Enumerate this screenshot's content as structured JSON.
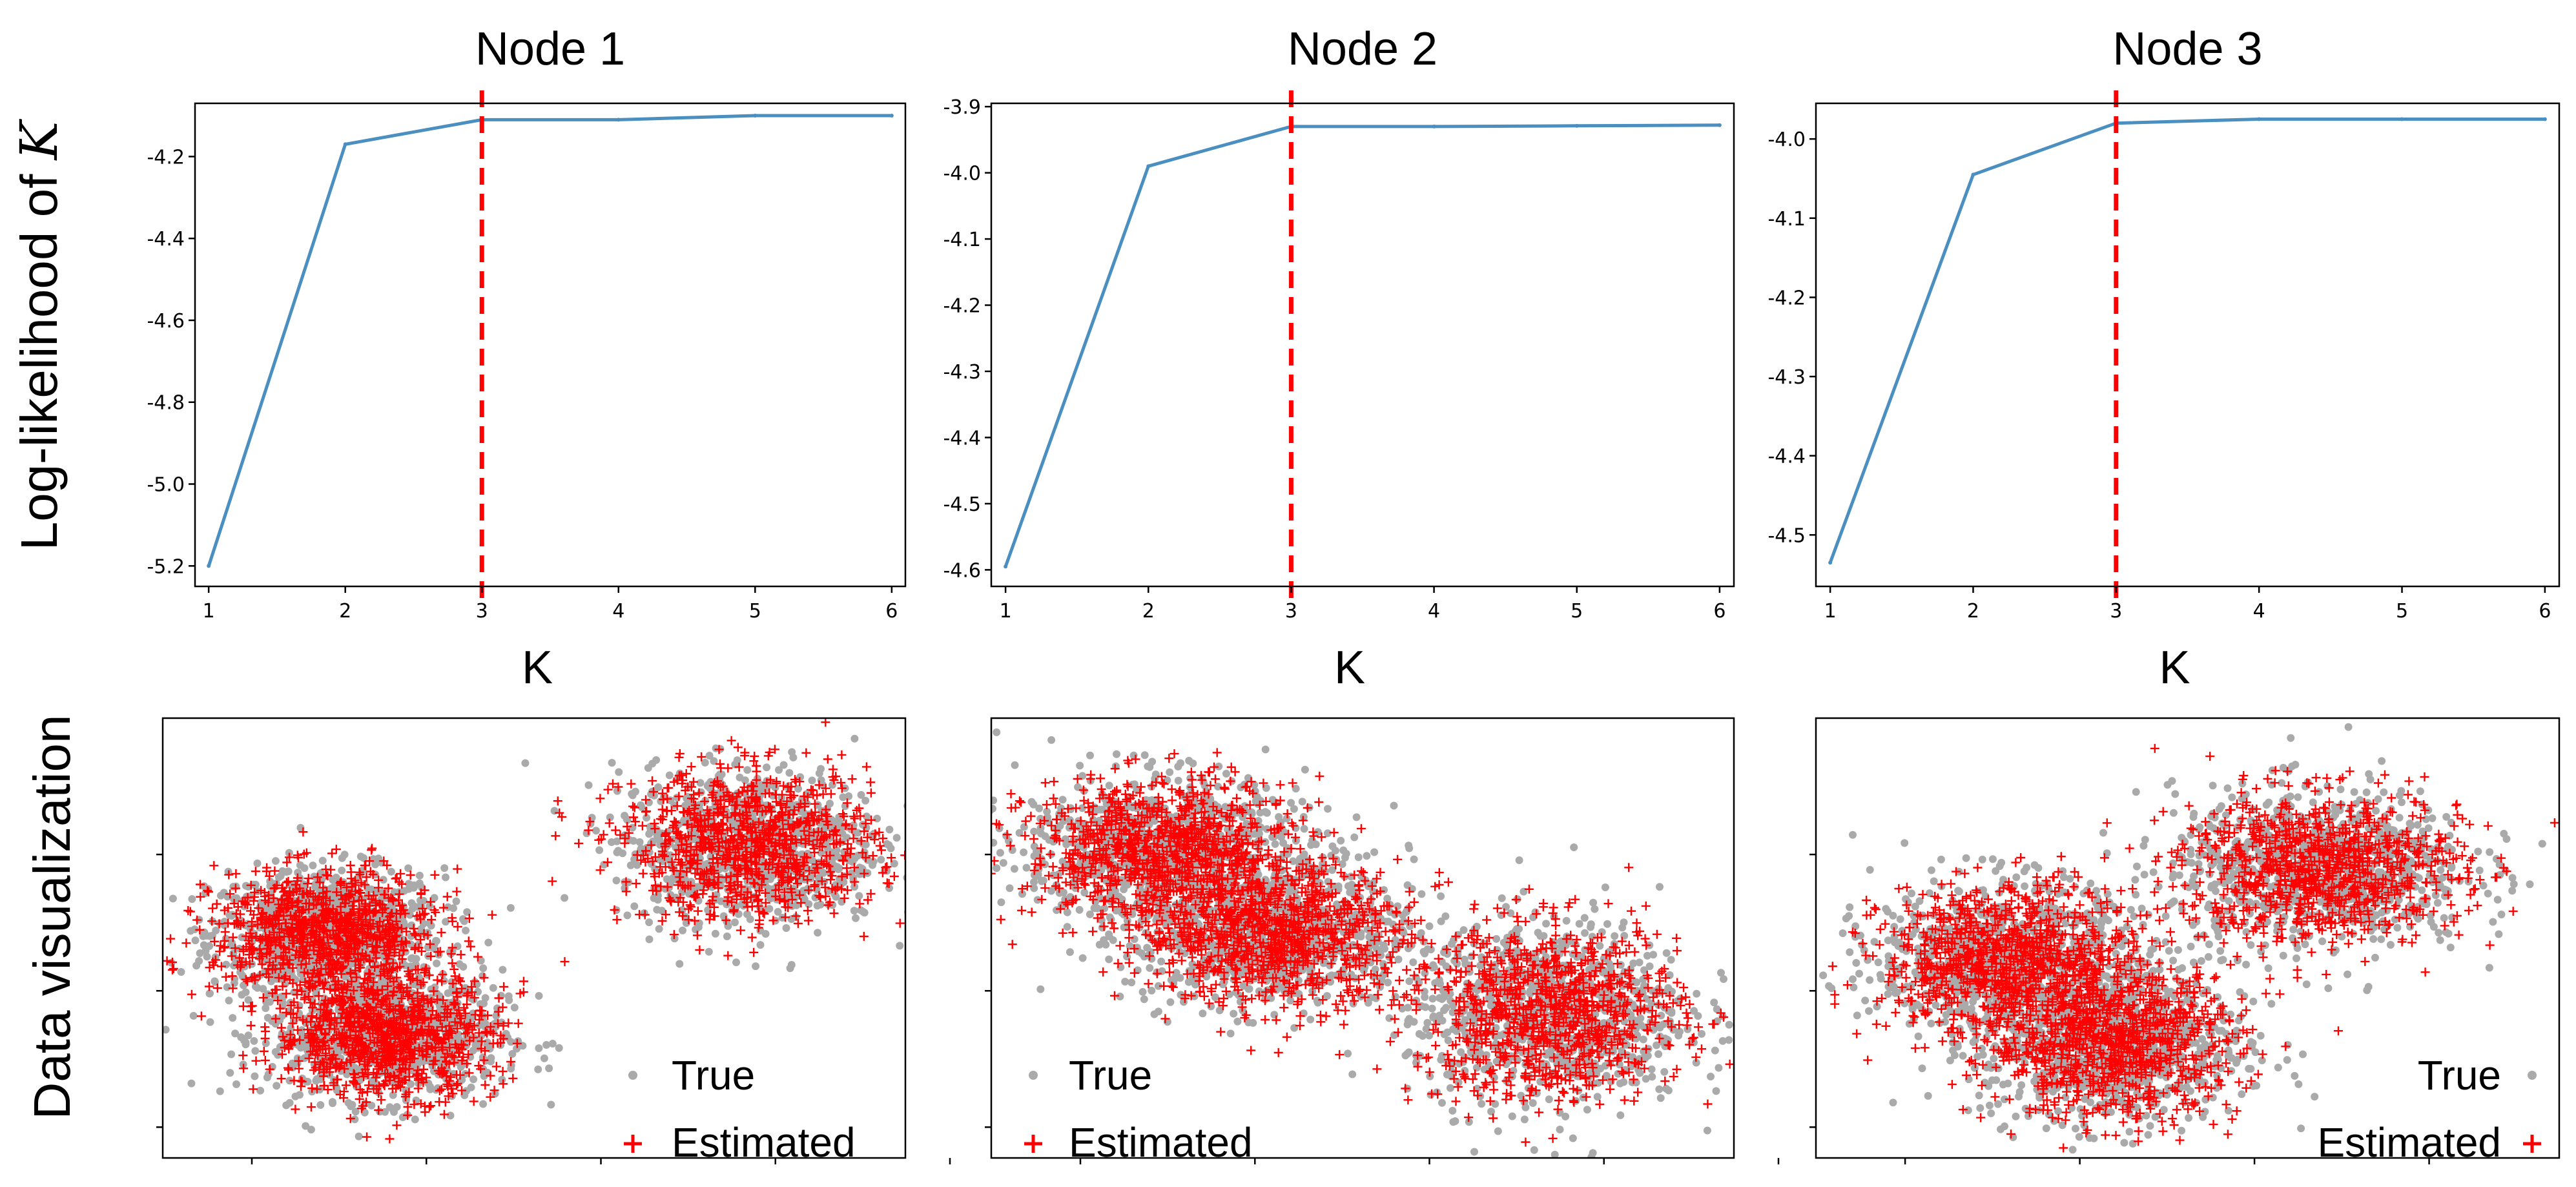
{
  "row_labels": {
    "top": "Log-likelihood of ",
    "top_math": "K",
    "bottom": "Data visualization"
  },
  "legend": {
    "true_label": "True",
    "estimated_label": "Estimated"
  },
  "colors": {
    "line": "#4a8fc0",
    "vline": "#ff0000",
    "true": "#aaaaaa",
    "estimated": "#ff0000"
  },
  "chart_data": [
    {
      "type": "line",
      "title": "Node 1",
      "xlabel": "K",
      "x": [
        1,
        2,
        3,
        4,
        5,
        6
      ],
      "y": [
        -5.2,
        -4.17,
        -4.11,
        -4.11,
        -4.1,
        -4.1
      ],
      "xlim": [
        0.9,
        6.1
      ],
      "ylim": [
        -5.25,
        -4.07
      ],
      "yticks": [
        -5.2,
        -5.0,
        -4.8,
        -4.6,
        -4.4,
        -4.2
      ],
      "ytick_labels": [
        "-5.2",
        "-5.0",
        "-4.8",
        "-4.6",
        "-4.4",
        "-4.2"
      ],
      "xticks": [
        1,
        2,
        3,
        4,
        5,
        6
      ],
      "xtick_labels": [
        "1",
        "2",
        "3",
        "4",
        "5",
        "6"
      ],
      "vline_x": 3
    },
    {
      "type": "line",
      "title": "Node 2",
      "xlabel": "K",
      "x": [
        1,
        2,
        3,
        4,
        5,
        6
      ],
      "y": [
        -4.595,
        -3.99,
        -3.93,
        -3.93,
        -3.929,
        -3.928
      ],
      "xlim": [
        0.9,
        6.1
      ],
      "ylim": [
        -4.625,
        -3.895
      ],
      "yticks": [
        -4.6,
        -4.5,
        -4.4,
        -4.3,
        -4.2,
        -4.1,
        -4.0,
        -3.9
      ],
      "ytick_labels": [
        "-4.6",
        "-4.5",
        "-4.4",
        "-4.3",
        "-4.2",
        "-4.1",
        "-4.0",
        "-3.9"
      ],
      "xticks": [
        1,
        2,
        3,
        4,
        5,
        6
      ],
      "xtick_labels": [
        "1",
        "2",
        "3",
        "4",
        "5",
        "6"
      ],
      "vline_x": 3
    },
    {
      "type": "line",
      "title": "Node 3",
      "xlabel": "K",
      "x": [
        1,
        2,
        3,
        4,
        5,
        6
      ],
      "y": [
        -4.535,
        -4.045,
        -3.98,
        -3.975,
        -3.975,
        -3.975
      ],
      "xlim": [
        0.9,
        6.1
      ],
      "ylim": [
        -4.565,
        -3.955
      ],
      "yticks": [
        -4.5,
        -4.4,
        -4.3,
        -4.2,
        -4.1,
        -4.0
      ],
      "ytick_labels": [
        "-4.5",
        "-4.4",
        "-4.3",
        "-4.2",
        "-4.1",
        "-4.0"
      ],
      "xticks": [
        1,
        2,
        3,
        4,
        5,
        6
      ],
      "xtick_labels": [
        "1",
        "2",
        "3",
        "4",
        "5",
        "6"
      ],
      "vline_x": 3
    },
    {
      "type": "scatter",
      "series": [
        {
          "name": "True",
          "clusters": [
            {
              "cx": 0.22,
              "cy": 0.51,
              "sx": 0.075,
              "sy": 0.07
            },
            {
              "cx": 0.3,
              "cy": 0.28,
              "sx": 0.075,
              "sy": 0.07
            },
            {
              "cx": 0.79,
              "cy": 0.71,
              "sx": 0.085,
              "sy": 0.085
            }
          ]
        },
        {
          "name": "Estimated"
        }
      ],
      "xlim": [
        0,
        1
      ],
      "ylim": [
        0,
        1
      ],
      "legend_loc": "lower right",
      "n_per_cluster": 900
    },
    {
      "type": "scatter",
      "series": [
        {
          "name": "True",
          "clusters": [
            {
              "cx": 0.23,
              "cy": 0.7,
              "sx": 0.09,
              "sy": 0.08
            },
            {
              "cx": 0.38,
              "cy": 0.51,
              "sx": 0.09,
              "sy": 0.08
            },
            {
              "cx": 0.75,
              "cy": 0.33,
              "sx": 0.09,
              "sy": 0.1
            }
          ]
        },
        {
          "name": "Estimated"
        }
      ],
      "xlim": [
        0,
        1
      ],
      "ylim": [
        0,
        1
      ],
      "legend_loc": "lower left",
      "n_per_cluster": 900
    },
    {
      "type": "scatter",
      "series": [
        {
          "name": "True",
          "clusters": [
            {
              "cx": 0.26,
              "cy": 0.45,
              "sx": 0.085,
              "sy": 0.085
            },
            {
              "cx": 0.4,
              "cy": 0.26,
              "sx": 0.085,
              "sy": 0.085
            },
            {
              "cx": 0.68,
              "cy": 0.66,
              "sx": 0.095,
              "sy": 0.085
            }
          ]
        },
        {
          "name": "Estimated"
        }
      ],
      "xlim": [
        0,
        1
      ],
      "ylim": [
        0,
        1
      ],
      "legend_loc": "lower right",
      "n_per_cluster": 900
    }
  ]
}
